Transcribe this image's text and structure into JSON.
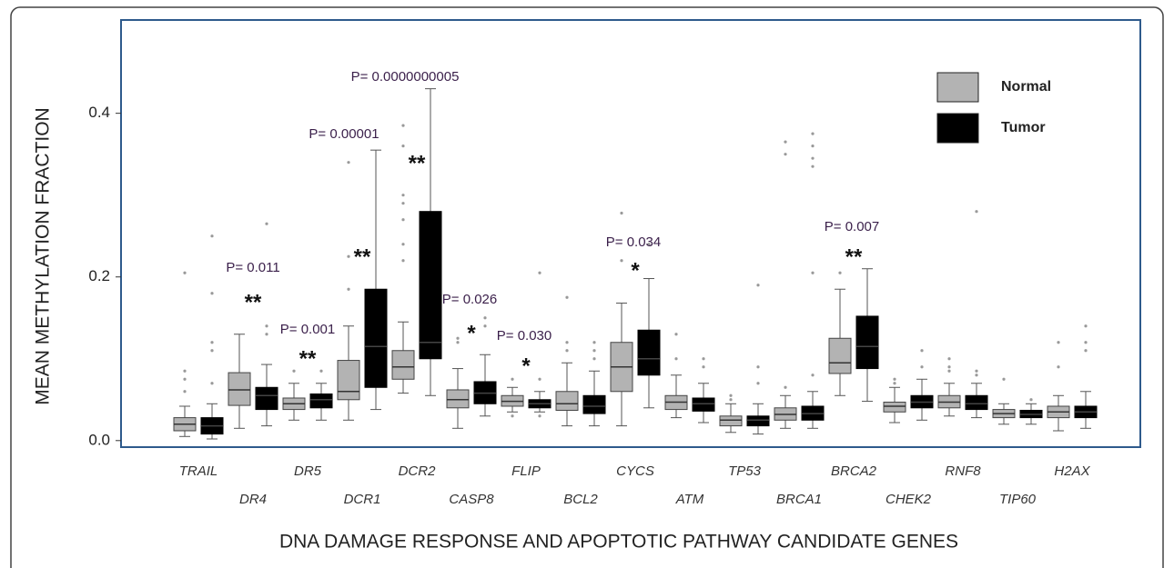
{
  "chart_data": {
    "type": "box",
    "y_label": "MEAN METHYLATION  FRACTION",
    "x_label": "DNA DAMAGE RESPONSE AND APOPTOTIC PATHWAY CANDIDATE GENES",
    "categories": [
      "TRAIL",
      "DR4",
      "DR5",
      "DCR1",
      "DCR2",
      "CASP8",
      "FLIP",
      "BCL2",
      "CYCS",
      "ATM",
      "TP53",
      "BRCA1",
      "BRCA2",
      "CHEK2",
      "RNF8",
      "TIP60",
      "H2AX"
    ],
    "ylim": [
      -0.008,
      0.514
    ],
    "yticks": [
      {
        "value": 0,
        "label": "0.0"
      },
      0.2,
      0.4
    ],
    "legend": "top-right",
    "series": [
      {
        "name": "Normal",
        "color": "#b3b3b3",
        "boxes": [
          {
            "min": 0.005,
            "q1": 0.012,
            "median": 0.02,
            "q3": 0.028,
            "max": 0.042,
            "outliers": [
              0.205,
              0.085,
              0.075,
              0.06
            ]
          },
          {
            "min": 0.015,
            "q1": 0.043,
            "median": 0.062,
            "q3": 0.083,
            "max": 0.13,
            "outliers": []
          },
          {
            "min": 0.025,
            "q1": 0.038,
            "median": 0.045,
            "q3": 0.052,
            "max": 0.07,
            "outliers": [
              0.085
            ]
          },
          {
            "min": 0.025,
            "q1": 0.05,
            "median": 0.06,
            "q3": 0.098,
            "max": 0.14,
            "outliers": [
              0.34,
              0.225,
              0.185
            ]
          },
          {
            "min": 0.058,
            "q1": 0.075,
            "median": 0.09,
            "q3": 0.11,
            "max": 0.145,
            "outliers": [
              0.385,
              0.36,
              0.3,
              0.29,
              0.27,
              0.24,
              0.22
            ]
          },
          {
            "min": 0.015,
            "q1": 0.04,
            "median": 0.05,
            "q3": 0.062,
            "max": 0.088,
            "outliers": [
              0.125,
              0.12
            ]
          },
          {
            "min": 0.035,
            "q1": 0.042,
            "median": 0.048,
            "q3": 0.055,
            "max": 0.065,
            "outliers": [
              0.075,
              0.03
            ]
          },
          {
            "min": 0.018,
            "q1": 0.037,
            "median": 0.045,
            "q3": 0.06,
            "max": 0.095,
            "outliers": [
              0.175,
              0.12,
              0.11
            ]
          },
          {
            "min": 0.018,
            "q1": 0.06,
            "median": 0.09,
            "q3": 0.12,
            "max": 0.168,
            "outliers": [
              0.278,
              0.22
            ]
          },
          {
            "min": 0.028,
            "q1": 0.038,
            "median": 0.047,
            "q3": 0.055,
            "max": 0.08,
            "outliers": [
              0.13,
              0.1
            ]
          },
          {
            "min": 0.01,
            "q1": 0.018,
            "median": 0.025,
            "q3": 0.03,
            "max": 0.045,
            "outliers": [
              0.055,
              0.05
            ]
          },
          {
            "min": 0.015,
            "q1": 0.025,
            "median": 0.032,
            "q3": 0.04,
            "max": 0.055,
            "outliers": [
              0.365,
              0.35,
              0.065
            ]
          },
          {
            "min": 0.055,
            "q1": 0.082,
            "median": 0.095,
            "q3": 0.125,
            "max": 0.185,
            "outliers": [
              0.205
            ]
          },
          {
            "min": 0.022,
            "q1": 0.035,
            "median": 0.042,
            "q3": 0.047,
            "max": 0.065,
            "outliers": [
              0.075,
              0.07
            ]
          },
          {
            "min": 0.03,
            "q1": 0.04,
            "median": 0.047,
            "q3": 0.055,
            "max": 0.07,
            "outliers": [
              0.1,
              0.09,
              0.085
            ]
          },
          {
            "min": 0.02,
            "q1": 0.028,
            "median": 0.033,
            "q3": 0.038,
            "max": 0.045,
            "outliers": [
              0.075
            ]
          },
          {
            "min": 0.012,
            "q1": 0.028,
            "median": 0.035,
            "q3": 0.042,
            "max": 0.055,
            "outliers": [
              0.12,
              0.09
            ]
          }
        ]
      },
      {
        "name": "Tumor",
        "color": "#000000",
        "boxes": [
          {
            "min": 0.002,
            "q1": 0.008,
            "median": 0.018,
            "q3": 0.028,
            "max": 0.045,
            "outliers": [
              0.25,
              0.18,
              0.12,
              0.11,
              0.07
            ]
          },
          {
            "min": 0.018,
            "q1": 0.038,
            "median": 0.055,
            "q3": 0.065,
            "max": 0.093,
            "outliers": [
              0.265,
              0.14,
              0.13
            ]
          },
          {
            "min": 0.025,
            "q1": 0.04,
            "median": 0.05,
            "q3": 0.057,
            "max": 0.07,
            "outliers": [
              0.085
            ]
          },
          {
            "min": 0.038,
            "q1": 0.065,
            "median": 0.115,
            "q3": 0.185,
            "max": 0.355,
            "outliers": []
          },
          {
            "min": 0.055,
            "q1": 0.1,
            "median": 0.12,
            "q3": 0.28,
            "max": 0.43,
            "outliers": []
          },
          {
            "min": 0.03,
            "q1": 0.045,
            "median": 0.058,
            "q3": 0.072,
            "max": 0.105,
            "outliers": [
              0.15,
              0.14
            ]
          },
          {
            "min": 0.035,
            "q1": 0.04,
            "median": 0.045,
            "q3": 0.05,
            "max": 0.06,
            "outliers": [
              0.205,
              0.075,
              0.03
            ]
          },
          {
            "min": 0.018,
            "q1": 0.033,
            "median": 0.042,
            "q3": 0.055,
            "max": 0.085,
            "outliers": [
              0.12,
              0.11,
              0.1
            ]
          },
          {
            "min": 0.04,
            "q1": 0.08,
            "median": 0.1,
            "q3": 0.135,
            "max": 0.198,
            "outliers": [
              0.24
            ]
          },
          {
            "min": 0.022,
            "q1": 0.036,
            "median": 0.045,
            "q3": 0.052,
            "max": 0.07,
            "outliers": [
              0.1,
              0.09
            ]
          },
          {
            "min": 0.008,
            "q1": 0.018,
            "median": 0.025,
            "q3": 0.03,
            "max": 0.045,
            "outliers": [
              0.19,
              0.09,
              0.07
            ]
          },
          {
            "min": 0.015,
            "q1": 0.025,
            "median": 0.033,
            "q3": 0.042,
            "max": 0.06,
            "outliers": [
              0.375,
              0.36,
              0.345,
              0.335,
              0.205,
              0.08
            ]
          },
          {
            "min": 0.048,
            "q1": 0.088,
            "median": 0.115,
            "q3": 0.152,
            "max": 0.21,
            "outliers": []
          },
          {
            "min": 0.025,
            "q1": 0.04,
            "median": 0.047,
            "q3": 0.055,
            "max": 0.075,
            "outliers": [
              0.11,
              0.09
            ]
          },
          {
            "min": 0.028,
            "q1": 0.038,
            "median": 0.045,
            "q3": 0.055,
            "max": 0.07,
            "outliers": [
              0.28,
              0.085,
              0.08
            ]
          },
          {
            "min": 0.02,
            "q1": 0.028,
            "median": 0.032,
            "q3": 0.037,
            "max": 0.045,
            "outliers": [
              0.05
            ]
          },
          {
            "min": 0.015,
            "q1": 0.028,
            "median": 0.035,
            "q3": 0.042,
            "max": 0.06,
            "outliers": [
              0.14,
              0.12,
              0.11
            ]
          }
        ]
      }
    ],
    "annotations": [
      {
        "category": "DR4",
        "text": "P= 0.011",
        "mark": "**"
      },
      {
        "category": "DR5",
        "text": "P= 0.001",
        "mark": "**"
      },
      {
        "category": "DCR1",
        "text": "P= 0.00001",
        "mark": "**"
      },
      {
        "category": "DCR2",
        "text": "P= 0.0000000005",
        "mark": "**"
      },
      {
        "category": "CASP8",
        "text": "P= 0.026",
        "mark": "*"
      },
      {
        "category": "FLIP",
        "text": "P= 0.030",
        "mark": "*"
      },
      {
        "category": "CYCS",
        "text": "P= 0.034",
        "mark": "*"
      },
      {
        "category": "BRCA2",
        "text": "P= 0.007",
        "mark": "**"
      }
    ]
  }
}
